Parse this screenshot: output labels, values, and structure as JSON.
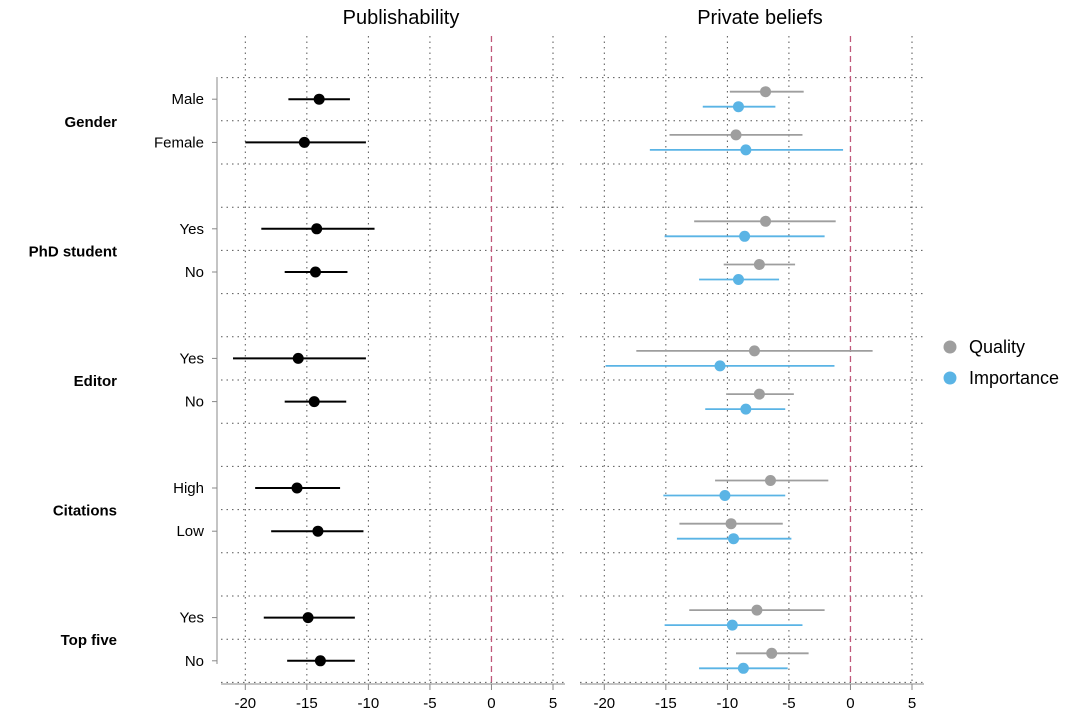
{
  "colors": {
    "publishability": "#000000",
    "quality": "#9e9e9e",
    "importance": "#5ab4e5",
    "zero_line": "#c0587a",
    "grid": "#555555",
    "axis": "#888888"
  },
  "chart_data": {
    "type": "scatter",
    "subtype": "coefficient-plot",
    "grid": true,
    "legend_position": "right",
    "groups": [
      {
        "label": "Gender",
        "levels": [
          "Male",
          "Female"
        ]
      },
      {
        "label": "PhD student",
        "levels": [
          "Yes",
          "No"
        ]
      },
      {
        "label": "Editor",
        "levels": [
          "Yes",
          "No"
        ]
      },
      {
        "label": "Citations",
        "levels": [
          "High",
          "Low"
        ]
      },
      {
        "label": "Top five",
        "levels": [
          "Yes",
          "No"
        ]
      }
    ],
    "panels": [
      {
        "title": "Publishability",
        "xlim": [
          -21,
          5
        ],
        "xticks": [
          "-20",
          "-15",
          "-10",
          "-5",
          "0",
          "5"
        ],
        "xtick_values": [
          -20,
          -15,
          -10,
          -5,
          0,
          5
        ],
        "series": [
          {
            "color": "#000000",
            "points": [
              {
                "group": "Gender",
                "level": "Male",
                "est": -14.0,
                "lo": -16.5,
                "hi": -11.5
              },
              {
                "group": "Gender",
                "level": "Female",
                "est": -15.2,
                "lo": -20.0,
                "hi": -10.2
              },
              {
                "group": "PhD student",
                "level": "Yes",
                "est": -14.2,
                "lo": -18.7,
                "hi": -9.5
              },
              {
                "group": "PhD student",
                "level": "No",
                "est": -14.3,
                "lo": -16.8,
                "hi": -11.7
              },
              {
                "group": "Editor",
                "level": "Yes",
                "est": -15.7,
                "lo": -21.0,
                "hi": -10.2
              },
              {
                "group": "Editor",
                "level": "No",
                "est": -14.4,
                "lo": -16.8,
                "hi": -11.8
              },
              {
                "group": "Citations",
                "level": "High",
                "est": -15.8,
                "lo": -19.2,
                "hi": -12.3
              },
              {
                "group": "Citations",
                "level": "Low",
                "est": -14.1,
                "lo": -17.9,
                "hi": -10.4
              },
              {
                "group": "Top five",
                "level": "Yes",
                "est": -14.9,
                "lo": -18.5,
                "hi": -11.1
              },
              {
                "group": "Top five",
                "level": "No",
                "est": -13.9,
                "lo": -16.6,
                "hi": -11.1
              }
            ]
          }
        ]
      },
      {
        "title": "Private beliefs",
        "xlim": [
          -21,
          5
        ],
        "xticks": [
          "-20",
          "-15",
          "-10",
          "-5",
          "0",
          "5"
        ],
        "xtick_values": [
          -20,
          -15,
          -10,
          -5,
          0,
          5
        ],
        "series": [
          {
            "name": "Quality",
            "color": "#9e9e9e",
            "points": [
              {
                "group": "Gender",
                "level": "Male",
                "est": -6.9,
                "lo": -9.8,
                "hi": -3.8
              },
              {
                "group": "Gender",
                "level": "Female",
                "est": -9.3,
                "lo": -14.7,
                "hi": -3.9
              },
              {
                "group": "PhD student",
                "level": "Yes",
                "est": -6.9,
                "lo": -12.7,
                "hi": -1.2
              },
              {
                "group": "PhD student",
                "level": "No",
                "est": -7.4,
                "lo": -10.3,
                "hi": -4.5
              },
              {
                "group": "Editor",
                "level": "Yes",
                "est": -7.8,
                "lo": -17.4,
                "hi": 1.8
              },
              {
                "group": "Editor",
                "level": "No",
                "est": -7.4,
                "lo": -10.1,
                "hi": -4.6
              },
              {
                "group": "Citations",
                "level": "High",
                "est": -6.5,
                "lo": -11.0,
                "hi": -1.8
              },
              {
                "group": "Citations",
                "level": "Low",
                "est": -9.7,
                "lo": -13.9,
                "hi": -5.5
              },
              {
                "group": "Top five",
                "level": "Yes",
                "est": -7.6,
                "lo": -13.1,
                "hi": -2.1
              },
              {
                "group": "Top five",
                "level": "No",
                "est": -6.4,
                "lo": -9.3,
                "hi": -3.4
              }
            ]
          },
          {
            "name": "Importance",
            "color": "#5ab4e5",
            "points": [
              {
                "group": "Gender",
                "level": "Male",
                "est": -9.1,
                "lo": -12.0,
                "hi": -6.1
              },
              {
                "group": "Gender",
                "level": "Female",
                "est": -8.5,
                "lo": -16.3,
                "hi": -0.6
              },
              {
                "group": "PhD student",
                "level": "Yes",
                "est": -8.6,
                "lo": -15.1,
                "hi": -2.1
              },
              {
                "group": "PhD student",
                "level": "No",
                "est": -9.1,
                "lo": -12.3,
                "hi": -5.8
              },
              {
                "group": "Editor",
                "level": "Yes",
                "est": -10.6,
                "lo": -19.9,
                "hi": -1.3
              },
              {
                "group": "Editor",
                "level": "No",
                "est": -8.5,
                "lo": -11.8,
                "hi": -5.3
              },
              {
                "group": "Citations",
                "level": "High",
                "est": -10.2,
                "lo": -15.2,
                "hi": -5.3
              },
              {
                "group": "Citations",
                "level": "Low",
                "est": -9.5,
                "lo": -14.1,
                "hi": -4.8
              },
              {
                "group": "Top five",
                "level": "Yes",
                "est": -9.6,
                "lo": -15.1,
                "hi": -3.9
              },
              {
                "group": "Top five",
                "level": "No",
                "est": -8.7,
                "lo": -12.3,
                "hi": -5.1
              }
            ]
          }
        ]
      }
    ]
  }
}
